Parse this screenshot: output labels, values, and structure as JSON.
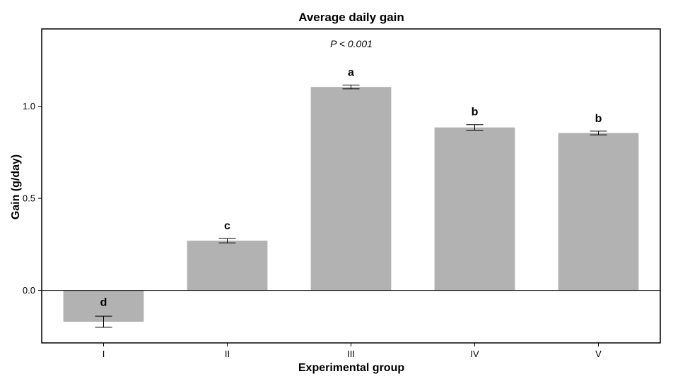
{
  "chart_data": {
    "type": "bar",
    "title": "Average daily gain",
    "annotation": "P < 0.001",
    "xlabel": "Experimental group",
    "ylabel": "Gain (g/day)",
    "categories": [
      "I",
      "II",
      "III",
      "IV",
      "V"
    ],
    "values": [
      -0.17,
      0.27,
      1.105,
      0.885,
      0.855
    ],
    "error": [
      0.03,
      0.012,
      0.01,
      0.015,
      0.01
    ],
    "significance_labels": [
      "d",
      "c",
      "a",
      "b",
      "b"
    ],
    "yticks": [
      0.0,
      0.5,
      1.0
    ],
    "ytick_labels": [
      "0.0",
      "0.5",
      "1.0"
    ],
    "ylim": [
      -0.285,
      1.42
    ],
    "bar_color": "#b2b2b2",
    "grid": false,
    "legend": "none"
  }
}
